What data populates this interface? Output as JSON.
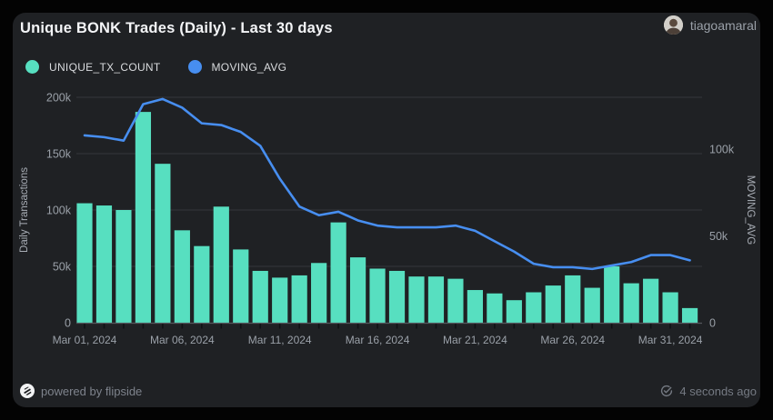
{
  "header": {
    "title": "Unique BONK Trades (Daily) - Last 30 days",
    "user": "tiagoamaral"
  },
  "legend": [
    {
      "label": "UNIQUE_TX_COUNT",
      "color": "#57dfc0"
    },
    {
      "label": "MOVING_AVG",
      "color": "#478ef0"
    }
  ],
  "chart_data": {
    "type": "bar",
    "title": "Unique BONK Trades (Daily) - Last 30 days",
    "x": [
      "Mar 01, 2024",
      "Mar 02, 2024",
      "Mar 03, 2024",
      "Mar 04, 2024",
      "Mar 05, 2024",
      "Mar 06, 2024",
      "Mar 07, 2024",
      "Mar 08, 2024",
      "Mar 09, 2024",
      "Mar 10, 2024",
      "Mar 11, 2024",
      "Mar 12, 2024",
      "Mar 13, 2024",
      "Mar 14, 2024",
      "Mar 15, 2024",
      "Mar 16, 2024",
      "Mar 17, 2024",
      "Mar 18, 2024",
      "Mar 19, 2024",
      "Mar 20, 2024",
      "Mar 21, 2024",
      "Mar 22, 2024",
      "Mar 23, 2024",
      "Mar 24, 2024",
      "Mar 25, 2024",
      "Mar 26, 2024",
      "Mar 27, 2024",
      "Mar 28, 2024",
      "Mar 29, 2024",
      "Mar 30, 2024",
      "Mar 31, 2024",
      "Apr 01, 2024"
    ],
    "x_label_every": 5,
    "series": [
      {
        "name": "UNIQUE_TX_COUNT",
        "type": "bar",
        "axis": "left",
        "color": "#57dfc0",
        "values": [
          106000,
          104000,
          100000,
          187000,
          141000,
          82000,
          68000,
          103000,
          65000,
          46000,
          40000,
          42000,
          53000,
          89000,
          58000,
          48000,
          46000,
          41000,
          41000,
          39000,
          29000,
          26000,
          20000,
          27000,
          33000,
          42000,
          31000,
          50000,
          35000,
          39000,
          27000,
          13000
        ]
      },
      {
        "name": "MOVING_AVG",
        "type": "line",
        "axis": "right",
        "color": "#478ef0",
        "values": [
          108000,
          107000,
          105000,
          126000,
          129000,
          124000,
          115000,
          114000,
          110000,
          102000,
          83000,
          67000,
          62000,
          64000,
          59000,
          56000,
          55000,
          55000,
          55000,
          56000,
          53000,
          47000,
          41000,
          34000,
          32000,
          32000,
          31000,
          33000,
          35000,
          39000,
          39000,
          36000
        ]
      }
    ],
    "left_axis": {
      "label": "Daily Transactions",
      "max": 200000,
      "ticks": [
        [
          0,
          "0"
        ],
        [
          50000,
          "50k"
        ],
        [
          100000,
          "100k"
        ],
        [
          150000,
          "150k"
        ],
        [
          200000,
          "200k"
        ]
      ]
    },
    "right_axis": {
      "label": "MOVING_AVG",
      "max": 130000,
      "ticks": [
        [
          0,
          "0"
        ],
        [
          50000,
          "50k"
        ],
        [
          100000,
          "100k"
        ]
      ]
    },
    "grid": true,
    "legend_position": "top-left"
  },
  "footer": {
    "powered_by": "powered by flipside",
    "updated": "4 seconds ago"
  },
  "colors": {
    "card_bg": "#1f2124",
    "page_bg": "#030303",
    "gridline": "#34373c",
    "axis_line": "#54575d",
    "tick_text": "#9aa0a8",
    "axis_title": "#a9aeb6"
  }
}
